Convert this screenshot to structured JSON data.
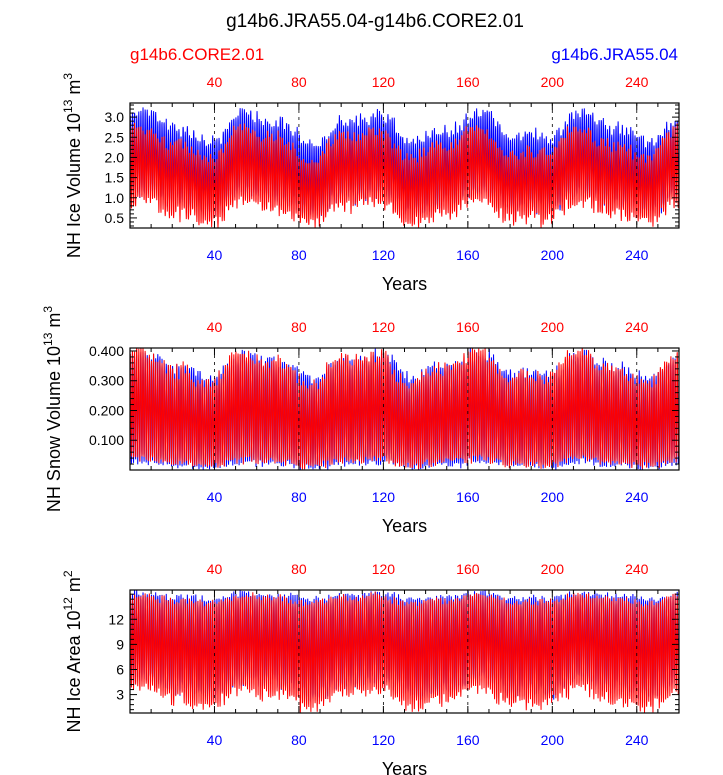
{
  "figure": {
    "title": "g14b6.JRA55.04-g14b6.CORE2.01",
    "left_label": "g14b6.CORE2.01",
    "right_label": "g14b6.JRA55.04",
    "left_color": "#ff0000",
    "right_color": "#0000ff"
  },
  "chart_data": [
    {
      "type": "line",
      "title": "",
      "xlabel": "Years",
      "ylabel": "NH Ice Volume 10^13 m^3",
      "ylabel_parts": {
        "base": "NH Ice Volume 10",
        "exp1": "13",
        "mid": " m",
        "exp2": "3"
      },
      "xlim": [
        0,
        260
      ],
      "ylim": [
        0.25,
        3.35
      ],
      "x_ticks": [
        40,
        80,
        120,
        160,
        200,
        240
      ],
      "x_tick_labels": [
        "40",
        "80",
        "120",
        "160",
        "200",
        "240"
      ],
      "y_ticks": [
        0.5,
        1.0,
        1.5,
        2.0,
        2.5,
        3.0
      ],
      "y_tick_labels": [
        "0.5",
        "1.0",
        "1.5",
        "2.0",
        "2.5",
        "3.0"
      ],
      "series": [
        {
          "name": "g14b6.JRA55.04",
          "color": "#0000ff",
          "annual_max_range": [
            2.3,
            3.2
          ],
          "annual_min_range": [
            0.6,
            1.2
          ]
        },
        {
          "name": "g14b6.CORE2.01",
          "color": "#ff0000",
          "annual_max_range": [
            1.9,
            2.8
          ],
          "annual_min_range": [
            0.3,
            1.0
          ]
        }
      ]
    },
    {
      "type": "line",
      "title": "",
      "xlabel": "Years",
      "ylabel": "NH Snow Volume 10^13 m^3",
      "ylabel_parts": {
        "base": "NH Snow Volume 10",
        "exp1": "13",
        "mid": " m",
        "exp2": "3"
      },
      "xlim": [
        0,
        260
      ],
      "ylim": [
        0.0,
        0.41
      ],
      "x_ticks": [
        40,
        80,
        120,
        160,
        200,
        240
      ],
      "x_tick_labels": [
        "40",
        "80",
        "120",
        "160",
        "200",
        "240"
      ],
      "y_ticks": [
        0.1,
        0.2,
        0.3,
        0.4
      ],
      "y_tick_labels": [
        "0.100",
        "0.200",
        "0.300",
        "0.400"
      ],
      "series": [
        {
          "name": "g14b6.JRA55.04",
          "color": "#0000ff",
          "annual_max_range": [
            0.3,
            0.4
          ],
          "annual_min_range": [
            0.005,
            0.03
          ]
        },
        {
          "name": "g14b6.CORE2.01",
          "color": "#ff0000",
          "annual_max_range": [
            0.28,
            0.41
          ],
          "annual_min_range": [
            0.01,
            0.04
          ]
        }
      ]
    },
    {
      "type": "line",
      "title": "",
      "xlabel": "Years",
      "ylabel": "NH Ice Area 10^12 m^2",
      "ylabel_parts": {
        "base": "NH Ice Area 10",
        "exp1": "12",
        "mid": " m",
        "exp2": "2"
      },
      "xlim": [
        0,
        260
      ],
      "ylim": [
        0.8,
        15.5
      ],
      "x_ticks": [
        40,
        80,
        120,
        160,
        200,
        240
      ],
      "x_tick_labels": [
        "40",
        "80",
        "120",
        "160",
        "200",
        "240"
      ],
      "y_ticks": [
        3,
        6,
        9,
        12
      ],
      "y_tick_labels": [
        "3",
        "6",
        "9",
        "12"
      ],
      "series": [
        {
          "name": "g14b6.JRA55.04",
          "color": "#0000ff",
          "annual_max_range": [
            14.3,
            15.2
          ],
          "annual_min_range": [
            2.5,
            5.0
          ]
        },
        {
          "name": "g14b6.CORE2.01",
          "color": "#ff0000",
          "annual_max_range": [
            13.8,
            15.0
          ],
          "annual_min_range": [
            1.2,
            4.0
          ]
        }
      ]
    }
  ]
}
